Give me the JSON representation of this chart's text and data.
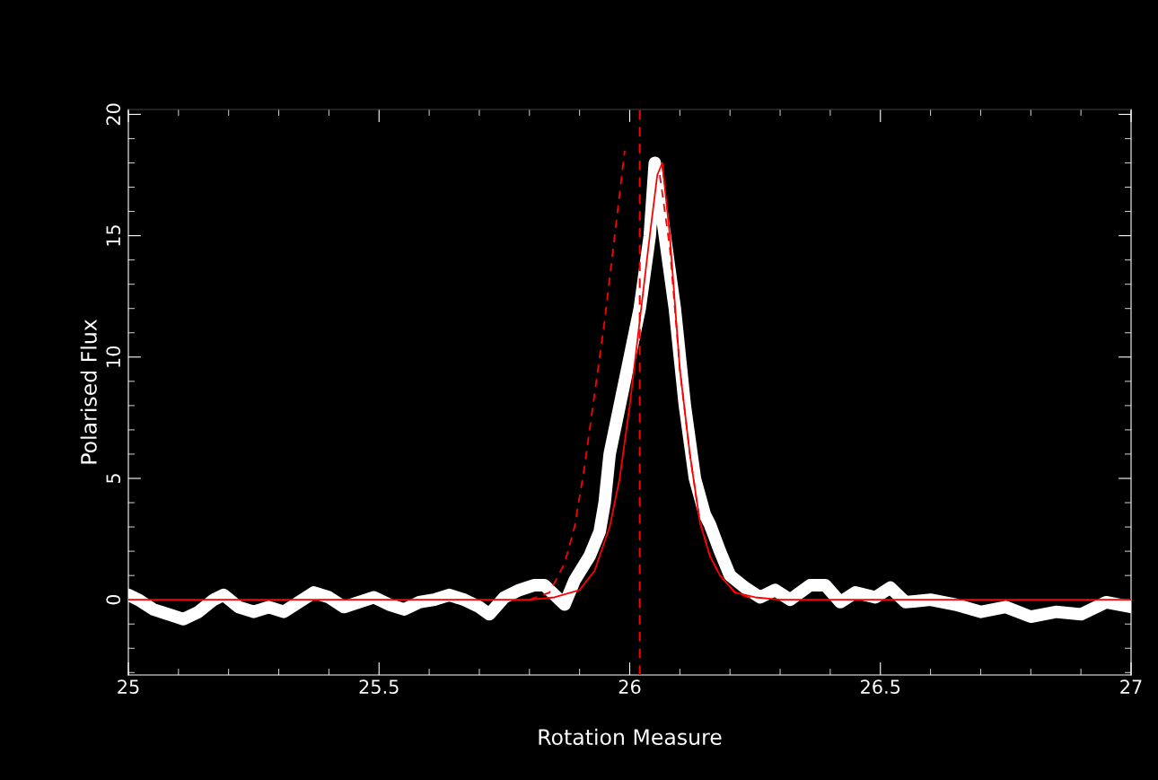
{
  "chart_data": {
    "type": "line",
    "xlabel": "Rotation Measure",
    "ylabel": "Polarised Flux",
    "xlim": [
      25,
      27
    ],
    "ylim": [
      -3.1,
      20.2
    ],
    "xticks": [
      25,
      25.5,
      26,
      26.5,
      27
    ],
    "yticks": [
      0,
      5,
      10,
      15,
      20
    ],
    "grid": false,
    "legend": false,
    "series": [
      {
        "color": "#ffffff",
        "line_style": "solid",
        "x": [
          25.0,
          25.02,
          25.05,
          25.08,
          25.11,
          25.14,
          25.17,
          25.19,
          25.22,
          25.25,
          25.28,
          25.31,
          25.34,
          25.37,
          25.4,
          25.43,
          25.46,
          25.49,
          25.52,
          25.55,
          25.58,
          25.61,
          25.64,
          25.67,
          25.7,
          25.72,
          25.75,
          25.78,
          25.81,
          25.83,
          25.85,
          25.87,
          25.89,
          25.92,
          25.94,
          25.95,
          25.96,
          25.98,
          26.0,
          26.02,
          26.04,
          26.05,
          26.07,
          26.09,
          26.11,
          26.13,
          26.15,
          26.16,
          26.18,
          26.2,
          26.23,
          26.26,
          26.29,
          26.32,
          26.36,
          26.39,
          26.42,
          26.45,
          26.49,
          26.52,
          26.55,
          26.6,
          26.65,
          26.7,
          26.75,
          26.8,
          26.85,
          26.9,
          26.95,
          27.0
        ],
        "values": [
          0.2,
          0.0,
          -0.4,
          -0.6,
          -0.8,
          -0.5,
          0.0,
          0.2,
          -0.3,
          -0.5,
          -0.3,
          -0.5,
          -0.1,
          0.3,
          0.1,
          -0.3,
          -0.1,
          0.1,
          -0.2,
          -0.4,
          -0.1,
          0.0,
          0.2,
          0.0,
          -0.3,
          -0.6,
          0.1,
          0.4,
          0.6,
          0.6,
          0.2,
          -0.2,
          0.8,
          1.8,
          2.8,
          4,
          6,
          8,
          10,
          12,
          15,
          18,
          15,
          12,
          8,
          5,
          3.5,
          3.1,
          2,
          1,
          0.5,
          0.1,
          0.4,
          0.0,
          0.6,
          0.6,
          -0.1,
          0.3,
          0.1,
          0.5,
          -0.1,
          0.0,
          -0.2,
          -0.5,
          -0.3,
          -0.7,
          -0.5,
          -0.6,
          -0.1,
          -0.3
        ]
      },
      {
        "color": "#ff0000",
        "line_style": "solid",
        "x": [
          25.0,
          25.8,
          25.85,
          25.9,
          25.93,
          25.96,
          25.98,
          26.0,
          26.02,
          26.04,
          26.055,
          26.065,
          26.08,
          26.1,
          26.12,
          26.14,
          26.16,
          26.18,
          26.21,
          26.25,
          26.3,
          27.0
        ],
        "values": [
          0,
          0,
          0.1,
          0.4,
          1.2,
          3,
          5,
          8,
          11.5,
          15,
          17.5,
          18,
          15,
          9.5,
          6,
          3.2,
          1.8,
          1.0,
          0.3,
          0.1,
          0,
          0
        ]
      },
      {
        "color": "#ff0000",
        "line_style": "dashed",
        "x": [
          25.8,
          25.84,
          25.87,
          25.89,
          25.91,
          25.93,
          25.95,
          25.97,
          25.99,
          26.0,
          26.02,
          26.045,
          26.06,
          26.08,
          26.1,
          26.12,
          26.14,
          26.16,
          26.18,
          26.21,
          26.25
        ],
        "values": [
          0,
          0.3,
          1.5,
          3,
          5.5,
          8.5,
          11.5,
          15,
          18.5,
          null,
          null,
          null,
          17.5,
          14.5,
          9.5,
          6,
          3.2,
          1.8,
          1.0,
          0.3,
          0
        ]
      }
    ],
    "ref_lines": [
      {
        "axis": "x",
        "value": 26.02,
        "color": "#ff0000",
        "line_style": "dashed"
      }
    ]
  }
}
